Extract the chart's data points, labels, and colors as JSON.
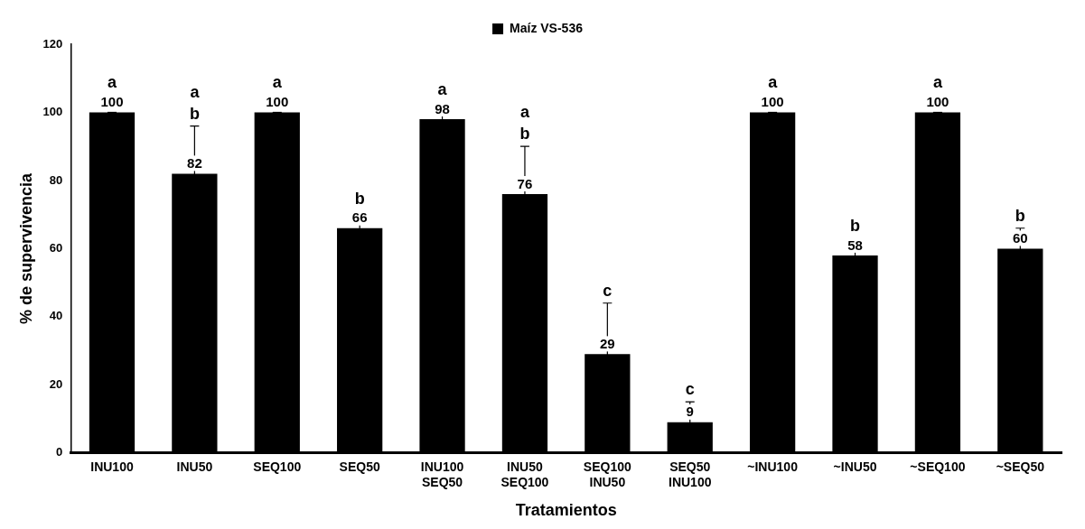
{
  "chart_data": {
    "type": "bar",
    "xlabel": "Tratamientos",
    "ylabel": "% de supervivencia",
    "categories": [
      "INU100",
      "INU50",
      "SEQ100",
      "SEQ50",
      "INU100\nSEQ50",
      "INU50\nSEQ100",
      "SEQ100\nINU50",
      "SEQ50\nINU100",
      "~INU100",
      "~INU50",
      "~SEQ100",
      "~SEQ50"
    ],
    "series": [
      {
        "name": "Maíz VS-536",
        "color": "#000000",
        "values": [
          100,
          82,
          100,
          66,
          98,
          76,
          29,
          9,
          100,
          58,
          100,
          60
        ],
        "errors": [
          0,
          14,
          0,
          5,
          4,
          14,
          15,
          6,
          0,
          4,
          0,
          6
        ]
      }
    ],
    "data_labels": true,
    "ylim": [
      0,
      120
    ],
    "yticks": [
      0,
      20,
      40,
      60,
      80,
      100,
      120
    ],
    "grid": false,
    "legend": "top",
    "annotations": [
      "a",
      "a",
      "b",
      "a",
      "b",
      "a",
      "a",
      "b",
      "c",
      "c",
      "a",
      "b",
      "a",
      "b"
    ]
  }
}
